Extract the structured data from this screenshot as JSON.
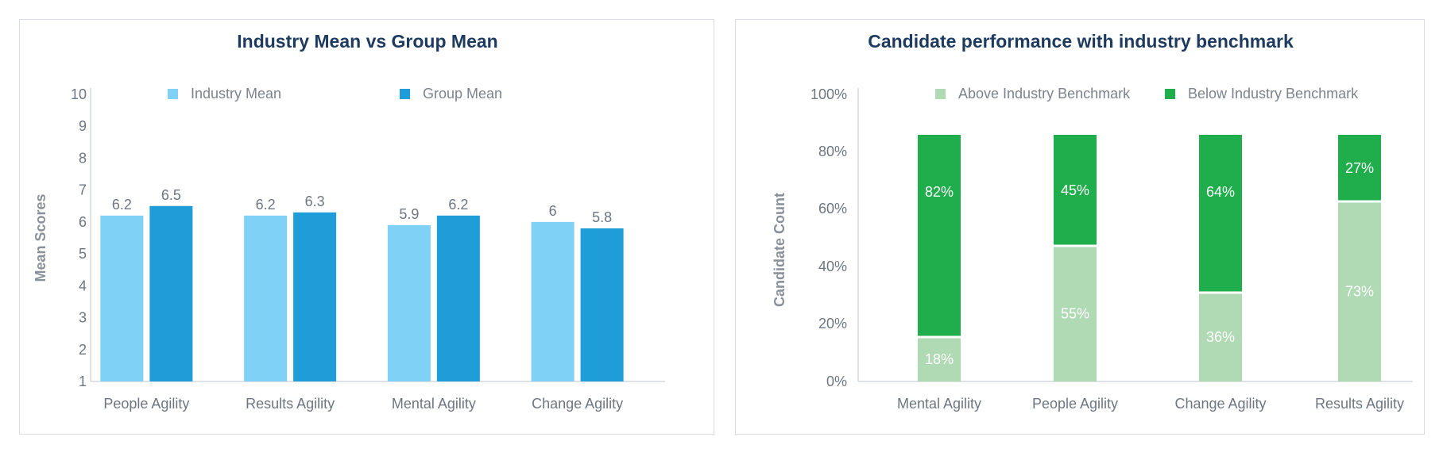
{
  "chart_data": [
    {
      "type": "bar",
      "title": "Industry Mean vs Group Mean",
      "xlabel": "",
      "ylabel": "Mean Scores",
      "ylim": [
        1,
        10
      ],
      "yticks": [
        "1",
        "2",
        "3",
        "4",
        "5",
        "6",
        "7",
        "8",
        "9",
        "10"
      ],
      "categories": [
        "People Agility",
        "Results Agility",
        "Mental Agility",
        "Change Agility"
      ],
      "series": [
        {
          "name": "Industry Mean",
          "color": "#7fd1f5",
          "values": [
            6.2,
            6.2,
            5.9,
            6
          ],
          "labels": [
            "6.2",
            "6.2",
            "5.9",
            "6"
          ]
        },
        {
          "name": "Group Mean",
          "color": "#1e9dd9",
          "values": [
            6.5,
            6.3,
            6.2,
            5.8
          ],
          "labels": [
            "6.5",
            "6.3",
            "6.2",
            "5.8"
          ]
        }
      ],
      "legend": "top",
      "grid": false
    },
    {
      "type": "bar",
      "stacked": true,
      "title": "Candidate performance with industry benchmark",
      "xlabel": "",
      "ylabel": "Candidate Count",
      "ylim": [
        0,
        100
      ],
      "yticks": [
        "0%",
        "20%",
        "40%",
        "60%",
        "80%",
        "100%"
      ],
      "categories": [
        "Mental Agility",
        "People Agility",
        "Change Agility",
        "Results Agility"
      ],
      "series": [
        {
          "name": "Above Industry Benchmark",
          "color": "#afdab4",
          "values": [
            18,
            55,
            36,
            73
          ],
          "labels": [
            "18%",
            "55%",
            "36%",
            "73%"
          ]
        },
        {
          "name": "Below Industry Benchmark",
          "color": "#1fae4b",
          "values": [
            82,
            45,
            64,
            27
          ],
          "labels": [
            "82%",
            "45%",
            "64%",
            "27%"
          ]
        }
      ],
      "legend": "top",
      "grid": false
    }
  ]
}
